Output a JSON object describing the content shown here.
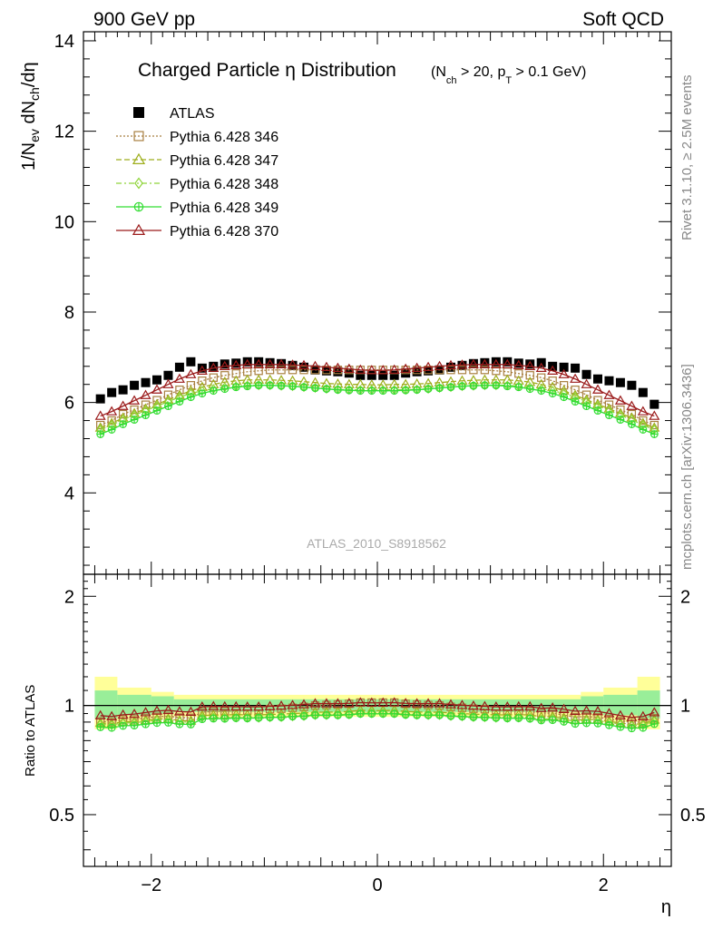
{
  "header": {
    "left": "900 GeV pp",
    "right": "Soft QCD"
  },
  "side_labels": {
    "rivet": "Rivet 3.1.10, ≥ 2.5M events",
    "mcplots": "mcplots.cern.ch [arXiv:1306.3436]"
  },
  "chart_data": {
    "type": "scatter",
    "title": {
      "main": "Charged Particle η Distribution",
      "sub": "(N",
      "sub_ch": "ch",
      "sub_mid": " > 20, p",
      "sub_t": "T",
      "sub_end": " > 0.1 GeV)"
    },
    "watermark": "ATLAS_2010_S8918562",
    "xlabel": "η",
    "ylabel_top": {
      "p1": "1/N",
      "p2": "ev",
      "p3": " dN",
      "p4": "ch",
      "p5": "/dη"
    },
    "ylabel_ratio": "Ratio to ATLAS",
    "xlim": [
      -2.6,
      2.6
    ],
    "ylim_top": [
      2.2,
      14.2
    ],
    "ylim_ratio": [
      0.36,
      2.3
    ],
    "x_ticks": [
      "−2",
      "0",
      "2"
    ],
    "y_ticks_top": [
      "4",
      "6",
      "8",
      "10",
      "12",
      "14"
    ],
    "y_ticks_ratio": [
      "0.5",
      "1",
      "2"
    ],
    "x_centers": [
      -2.45,
      -2.35,
      -2.25,
      -2.15,
      -2.05,
      -1.95,
      -1.85,
      -1.75,
      -1.65,
      -1.55,
      -1.45,
      -1.35,
      -1.25,
      -1.15,
      -1.05,
      -0.95,
      -0.85,
      -0.75,
      -0.65,
      -0.55,
      -0.45,
      -0.35,
      -0.25,
      -0.15,
      -0.05,
      0.05,
      0.15,
      0.25,
      0.35,
      0.45,
      0.55,
      0.65,
      0.75,
      0.85,
      0.95,
      1.05,
      1.15,
      1.25,
      1.35,
      1.45,
      1.55,
      1.65,
      1.75,
      1.85,
      1.95,
      2.05,
      2.15,
      2.25,
      2.35,
      2.45
    ],
    "series": [
      {
        "name": "ATLAS",
        "marker": "square-filled",
        "color": "#000000",
        "values": [
          6.08,
          6.22,
          6.28,
          6.38,
          6.44,
          6.5,
          6.6,
          6.78,
          6.9,
          6.76,
          6.8,
          6.85,
          6.87,
          6.9,
          6.9,
          6.88,
          6.86,
          6.82,
          6.78,
          6.72,
          6.7,
          6.68,
          6.65,
          6.6,
          6.6,
          6.6,
          6.6,
          6.65,
          6.68,
          6.7,
          6.72,
          6.78,
          6.82,
          6.86,
          6.88,
          6.9,
          6.9,
          6.87,
          6.85,
          6.88,
          6.8,
          6.78,
          6.76,
          6.62,
          6.52,
          6.48,
          6.44,
          6.38,
          6.22,
          5.96
        ]
      },
      {
        "name": "Pythia 6.428 346",
        "marker": "square-open",
        "color": "#a87f40",
        "values": [
          5.5,
          5.6,
          5.74,
          5.84,
          5.95,
          6.05,
          6.17,
          6.28,
          6.38,
          6.48,
          6.55,
          6.6,
          6.64,
          6.68,
          6.7,
          6.72,
          6.72,
          6.72,
          6.72,
          6.72,
          6.72,
          6.72,
          6.72,
          6.72,
          6.72,
          6.72,
          6.72,
          6.72,
          6.72,
          6.72,
          6.72,
          6.72,
          6.72,
          6.72,
          6.72,
          6.7,
          6.68,
          6.64,
          6.6,
          6.55,
          6.48,
          6.38,
          6.28,
          6.17,
          6.05,
          5.95,
          5.84,
          5.74,
          5.6,
          5.5
        ]
      },
      {
        "name": "Pythia 6.428 347",
        "marker": "triangle-open",
        "color": "#9eae1c",
        "values": [
          5.44,
          5.54,
          5.66,
          5.76,
          5.86,
          5.96,
          6.06,
          6.16,
          6.26,
          6.34,
          6.4,
          6.45,
          6.48,
          6.5,
          6.5,
          6.5,
          6.49,
          6.48,
          6.46,
          6.44,
          6.42,
          6.41,
          6.4,
          6.4,
          6.39,
          6.39,
          6.4,
          6.4,
          6.41,
          6.42,
          6.44,
          6.46,
          6.48,
          6.49,
          6.5,
          6.5,
          6.5,
          6.48,
          6.45,
          6.4,
          6.34,
          6.26,
          6.16,
          6.06,
          5.96,
          5.86,
          5.76,
          5.66,
          5.54,
          5.44
        ]
      },
      {
        "name": "Pythia 6.428 348",
        "marker": "diamond-open",
        "color": "#8fd43a",
        "values": [
          5.4,
          5.5,
          5.62,
          5.72,
          5.82,
          5.92,
          6.02,
          6.12,
          6.2,
          6.26,
          6.3,
          6.34,
          6.36,
          6.38,
          6.38,
          6.38,
          6.37,
          6.36,
          6.34,
          6.32,
          6.3,
          6.29,
          6.28,
          6.28,
          6.28,
          6.28,
          6.28,
          6.28,
          6.29,
          6.3,
          6.32,
          6.34,
          6.36,
          6.37,
          6.38,
          6.38,
          6.38,
          6.36,
          6.34,
          6.3,
          6.26,
          6.2,
          6.12,
          6.02,
          5.92,
          5.82,
          5.72,
          5.62,
          5.5,
          5.4
        ]
      },
      {
        "name": "Pythia 6.428 349",
        "marker": "circle-plus",
        "color": "#33dd33",
        "values": [
          5.3,
          5.4,
          5.52,
          5.62,
          5.72,
          5.82,
          5.92,
          6.02,
          6.12,
          6.2,
          6.26,
          6.3,
          6.34,
          6.36,
          6.38,
          6.38,
          6.37,
          6.36,
          6.34,
          6.32,
          6.3,
          6.28,
          6.27,
          6.26,
          6.26,
          6.26,
          6.26,
          6.27,
          6.28,
          6.3,
          6.32,
          6.34,
          6.36,
          6.37,
          6.38,
          6.38,
          6.36,
          6.34,
          6.3,
          6.26,
          6.2,
          6.12,
          6.02,
          5.92,
          5.82,
          5.72,
          5.62,
          5.52,
          5.4,
          5.3
        ]
      },
      {
        "name": "Pythia 6.428 370",
        "marker": "triangle-open",
        "color": "#9b1b1b",
        "values": [
          5.7,
          5.8,
          5.92,
          6.04,
          6.16,
          6.28,
          6.4,
          6.52,
          6.62,
          6.7,
          6.76,
          6.8,
          6.82,
          6.84,
          6.84,
          6.84,
          6.84,
          6.83,
          6.82,
          6.8,
          6.78,
          6.76,
          6.74,
          6.72,
          6.71,
          6.71,
          6.72,
          6.74,
          6.76,
          6.78,
          6.8,
          6.82,
          6.83,
          6.84,
          6.84,
          6.84,
          6.84,
          6.82,
          6.8,
          6.76,
          6.7,
          6.62,
          6.52,
          6.4,
          6.28,
          6.16,
          6.04,
          5.92,
          5.8,
          5.7
        ]
      }
    ],
    "ratio_bands": [
      {
        "x0": -2.5,
        "x1": -2.3,
        "lo": 0.86,
        "hi": 1.2,
        "ilo": 0.92,
        "ihi": 1.1
      },
      {
        "x0": -2.3,
        "x1": -2.0,
        "lo": 0.9,
        "hi": 1.12,
        "ilo": 0.94,
        "ihi": 1.07
      },
      {
        "x0": -2.0,
        "x1": -1.8,
        "lo": 0.92,
        "hi": 1.09,
        "ilo": 0.95,
        "ihi": 1.06
      },
      {
        "x0": -1.8,
        "x1": 1.8,
        "lo": 0.93,
        "hi": 1.07,
        "ilo": 0.96,
        "ihi": 1.04
      },
      {
        "x0": 1.8,
        "x1": 2.0,
        "lo": 0.92,
        "hi": 1.09,
        "ilo": 0.95,
        "ihi": 1.06
      },
      {
        "x0": 2.0,
        "x1": 2.3,
        "lo": 0.9,
        "hi": 1.12,
        "ilo": 0.94,
        "ihi": 1.07
      },
      {
        "x0": 2.3,
        "x1": 2.5,
        "lo": 0.86,
        "hi": 1.2,
        "ilo": 0.92,
        "ihi": 1.1
      }
    ],
    "legend_position": "top-left"
  }
}
